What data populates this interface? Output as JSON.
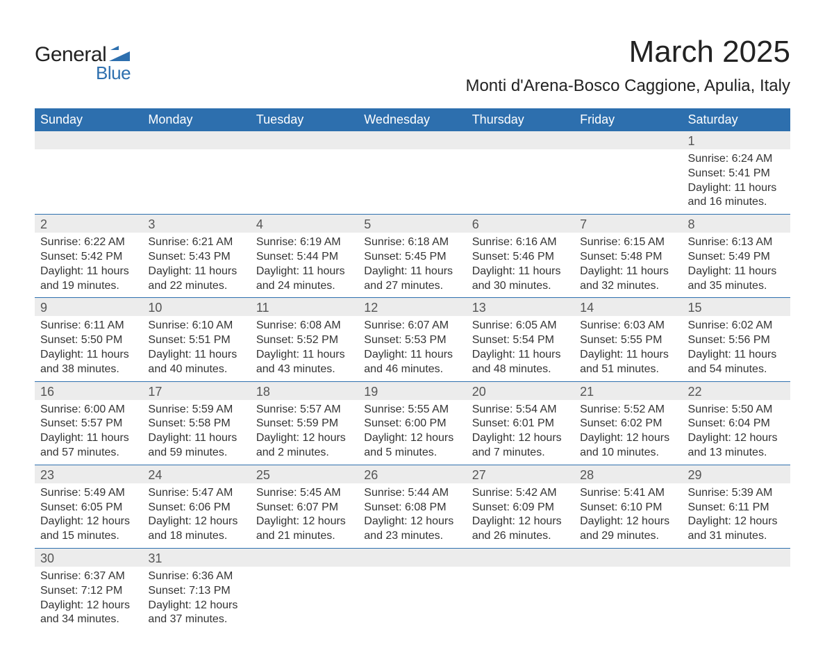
{
  "logo": {
    "text_general": "General",
    "text_blue": "Blue",
    "icon_name": "generalblue-logo-icon",
    "icon_color": "#2d6fae"
  },
  "title": {
    "month": "March 2025",
    "location": "Monti d'Arena-Bosco Caggione, Apulia, Italy"
  },
  "calendar": {
    "type": "table",
    "header_bg": "#2d6fae",
    "header_fg": "#ffffff",
    "daynum_bg": "#ececec",
    "daynum_fg": "#555555",
    "row_separator_color": "#2d6fae",
    "body_text_color": "#333333",
    "background_color": "#ffffff",
    "header_fontsize": 18,
    "body_fontsize": 16,
    "columns": [
      "Sunday",
      "Monday",
      "Tuesday",
      "Wednesday",
      "Thursday",
      "Friday",
      "Saturday"
    ],
    "weeks": [
      [
        null,
        null,
        null,
        null,
        null,
        null,
        {
          "day": "1",
          "sunrise": "Sunrise: 6:24 AM",
          "sunset": "Sunset: 5:41 PM",
          "daylight1": "Daylight: 11 hours",
          "daylight2": "and 16 minutes."
        }
      ],
      [
        {
          "day": "2",
          "sunrise": "Sunrise: 6:22 AM",
          "sunset": "Sunset: 5:42 PM",
          "daylight1": "Daylight: 11 hours",
          "daylight2": "and 19 minutes."
        },
        {
          "day": "3",
          "sunrise": "Sunrise: 6:21 AM",
          "sunset": "Sunset: 5:43 PM",
          "daylight1": "Daylight: 11 hours",
          "daylight2": "and 22 minutes."
        },
        {
          "day": "4",
          "sunrise": "Sunrise: 6:19 AM",
          "sunset": "Sunset: 5:44 PM",
          "daylight1": "Daylight: 11 hours",
          "daylight2": "and 24 minutes."
        },
        {
          "day": "5",
          "sunrise": "Sunrise: 6:18 AM",
          "sunset": "Sunset: 5:45 PM",
          "daylight1": "Daylight: 11 hours",
          "daylight2": "and 27 minutes."
        },
        {
          "day": "6",
          "sunrise": "Sunrise: 6:16 AM",
          "sunset": "Sunset: 5:46 PM",
          "daylight1": "Daylight: 11 hours",
          "daylight2": "and 30 minutes."
        },
        {
          "day": "7",
          "sunrise": "Sunrise: 6:15 AM",
          "sunset": "Sunset: 5:48 PM",
          "daylight1": "Daylight: 11 hours",
          "daylight2": "and 32 minutes."
        },
        {
          "day": "8",
          "sunrise": "Sunrise: 6:13 AM",
          "sunset": "Sunset: 5:49 PM",
          "daylight1": "Daylight: 11 hours",
          "daylight2": "and 35 minutes."
        }
      ],
      [
        {
          "day": "9",
          "sunrise": "Sunrise: 6:11 AM",
          "sunset": "Sunset: 5:50 PM",
          "daylight1": "Daylight: 11 hours",
          "daylight2": "and 38 minutes."
        },
        {
          "day": "10",
          "sunrise": "Sunrise: 6:10 AM",
          "sunset": "Sunset: 5:51 PM",
          "daylight1": "Daylight: 11 hours",
          "daylight2": "and 40 minutes."
        },
        {
          "day": "11",
          "sunrise": "Sunrise: 6:08 AM",
          "sunset": "Sunset: 5:52 PM",
          "daylight1": "Daylight: 11 hours",
          "daylight2": "and 43 minutes."
        },
        {
          "day": "12",
          "sunrise": "Sunrise: 6:07 AM",
          "sunset": "Sunset: 5:53 PM",
          "daylight1": "Daylight: 11 hours",
          "daylight2": "and 46 minutes."
        },
        {
          "day": "13",
          "sunrise": "Sunrise: 6:05 AM",
          "sunset": "Sunset: 5:54 PM",
          "daylight1": "Daylight: 11 hours",
          "daylight2": "and 48 minutes."
        },
        {
          "day": "14",
          "sunrise": "Sunrise: 6:03 AM",
          "sunset": "Sunset: 5:55 PM",
          "daylight1": "Daylight: 11 hours",
          "daylight2": "and 51 minutes."
        },
        {
          "day": "15",
          "sunrise": "Sunrise: 6:02 AM",
          "sunset": "Sunset: 5:56 PM",
          "daylight1": "Daylight: 11 hours",
          "daylight2": "and 54 minutes."
        }
      ],
      [
        {
          "day": "16",
          "sunrise": "Sunrise: 6:00 AM",
          "sunset": "Sunset: 5:57 PM",
          "daylight1": "Daylight: 11 hours",
          "daylight2": "and 57 minutes."
        },
        {
          "day": "17",
          "sunrise": "Sunrise: 5:59 AM",
          "sunset": "Sunset: 5:58 PM",
          "daylight1": "Daylight: 11 hours",
          "daylight2": "and 59 minutes."
        },
        {
          "day": "18",
          "sunrise": "Sunrise: 5:57 AM",
          "sunset": "Sunset: 5:59 PM",
          "daylight1": "Daylight: 12 hours",
          "daylight2": "and 2 minutes."
        },
        {
          "day": "19",
          "sunrise": "Sunrise: 5:55 AM",
          "sunset": "Sunset: 6:00 PM",
          "daylight1": "Daylight: 12 hours",
          "daylight2": "and 5 minutes."
        },
        {
          "day": "20",
          "sunrise": "Sunrise: 5:54 AM",
          "sunset": "Sunset: 6:01 PM",
          "daylight1": "Daylight: 12 hours",
          "daylight2": "and 7 minutes."
        },
        {
          "day": "21",
          "sunrise": "Sunrise: 5:52 AM",
          "sunset": "Sunset: 6:02 PM",
          "daylight1": "Daylight: 12 hours",
          "daylight2": "and 10 minutes."
        },
        {
          "day": "22",
          "sunrise": "Sunrise: 5:50 AM",
          "sunset": "Sunset: 6:04 PM",
          "daylight1": "Daylight: 12 hours",
          "daylight2": "and 13 minutes."
        }
      ],
      [
        {
          "day": "23",
          "sunrise": "Sunrise: 5:49 AM",
          "sunset": "Sunset: 6:05 PM",
          "daylight1": "Daylight: 12 hours",
          "daylight2": "and 15 minutes."
        },
        {
          "day": "24",
          "sunrise": "Sunrise: 5:47 AM",
          "sunset": "Sunset: 6:06 PM",
          "daylight1": "Daylight: 12 hours",
          "daylight2": "and 18 minutes."
        },
        {
          "day": "25",
          "sunrise": "Sunrise: 5:45 AM",
          "sunset": "Sunset: 6:07 PM",
          "daylight1": "Daylight: 12 hours",
          "daylight2": "and 21 minutes."
        },
        {
          "day": "26",
          "sunrise": "Sunrise: 5:44 AM",
          "sunset": "Sunset: 6:08 PM",
          "daylight1": "Daylight: 12 hours",
          "daylight2": "and 23 minutes."
        },
        {
          "day": "27",
          "sunrise": "Sunrise: 5:42 AM",
          "sunset": "Sunset: 6:09 PM",
          "daylight1": "Daylight: 12 hours",
          "daylight2": "and 26 minutes."
        },
        {
          "day": "28",
          "sunrise": "Sunrise: 5:41 AM",
          "sunset": "Sunset: 6:10 PM",
          "daylight1": "Daylight: 12 hours",
          "daylight2": "and 29 minutes."
        },
        {
          "day": "29",
          "sunrise": "Sunrise: 5:39 AM",
          "sunset": "Sunset: 6:11 PM",
          "daylight1": "Daylight: 12 hours",
          "daylight2": "and 31 minutes."
        }
      ],
      [
        {
          "day": "30",
          "sunrise": "Sunrise: 6:37 AM",
          "sunset": "Sunset: 7:12 PM",
          "daylight1": "Daylight: 12 hours",
          "daylight2": "and 34 minutes."
        },
        {
          "day": "31",
          "sunrise": "Sunrise: 6:36 AM",
          "sunset": "Sunset: 7:13 PM",
          "daylight1": "Daylight: 12 hours",
          "daylight2": "and 37 minutes."
        },
        null,
        null,
        null,
        null,
        null
      ]
    ]
  }
}
